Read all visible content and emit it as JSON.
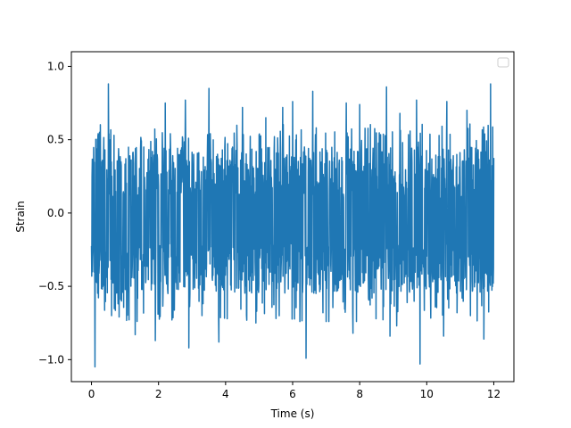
{
  "chart_data": {
    "type": "line",
    "title": "",
    "xlabel": "Time (s)",
    "ylabel": "Strain",
    "xlim": [
      -0.6,
      12.6
    ],
    "ylim": [
      -1.15,
      1.1
    ],
    "xticks": [
      0,
      2,
      4,
      6,
      8,
      10,
      12
    ],
    "xtick_labels": [
      "0",
      "2",
      "4",
      "6",
      "8",
      "10",
      "12"
    ],
    "yticks": [
      -1.0,
      -0.5,
      0.0,
      0.5,
      1.0
    ],
    "ytick_labels": [
      "−1.0",
      "−0.5",
      "0.0",
      "0.5",
      "1.0"
    ],
    "grid": false,
    "legend": {
      "placement": "top-right",
      "entries": []
    },
    "series": [
      {
        "color": "#1f77b4",
        "x_range": [
          0,
          12
        ],
        "noise_range": [
          -0.55,
          0.45
        ],
        "peaks": [
          {
            "x": 0.1,
            "y": 0.95
          },
          {
            "x": 0.5,
            "y": 0.88
          },
          {
            "x": 3.8,
            "y": 1.0
          },
          {
            "x": 1.3,
            "y": 0.78
          },
          {
            "x": 2.2,
            "y": 0.75
          },
          {
            "x": 2.8,
            "y": 0.77
          },
          {
            "x": 3.5,
            "y": 0.85
          },
          {
            "x": 5.7,
            "y": 0.72
          },
          {
            "x": 6.0,
            "y": 0.76
          },
          {
            "x": 6.6,
            "y": 0.83
          },
          {
            "x": 7.0,
            "y": 0.78
          },
          {
            "x": 7.6,
            "y": 0.75
          },
          {
            "x": 8.0,
            "y": 0.74
          },
          {
            "x": 8.8,
            "y": 0.86
          },
          {
            "x": 9.7,
            "y": 0.77
          },
          {
            "x": 10.6,
            "y": 0.76
          },
          {
            "x": 11.2,
            "y": 0.7
          },
          {
            "x": 11.9,
            "y": 0.88
          },
          {
            "x": 4.5,
            "y": 0.72
          },
          {
            "x": 5.2,
            "y": 0.65
          },
          {
            "x": 9.2,
            "y": 0.68
          }
        ],
        "troughs": [
          {
            "x": 0.1,
            "y": -1.05
          },
          {
            "x": 9.8,
            "y": -1.03
          },
          {
            "x": 6.4,
            "y": -0.99
          },
          {
            "x": 2.9,
            "y": -0.92
          },
          {
            "x": 3.8,
            "y": -0.88
          },
          {
            "x": 1.9,
            "y": -0.87
          },
          {
            "x": 8.9,
            "y": -0.84
          },
          {
            "x": 10.5,
            "y": -0.84
          },
          {
            "x": 1.3,
            "y": -0.83
          },
          {
            "x": 7.8,
            "y": -0.82
          },
          {
            "x": 11.7,
            "y": -0.86
          },
          {
            "x": 0.6,
            "y": -0.7
          },
          {
            "x": 4.9,
            "y": -0.75
          },
          {
            "x": 5.5,
            "y": -0.72
          },
          {
            "x": 7.0,
            "y": -0.74
          },
          {
            "x": 9.1,
            "y": -0.77
          },
          {
            "x": 11.3,
            "y": -0.7
          },
          {
            "x": 2.4,
            "y": -0.73
          },
          {
            "x": 3.3,
            "y": -0.7
          },
          {
            "x": 6.9,
            "y": -0.68
          }
        ]
      }
    ]
  }
}
